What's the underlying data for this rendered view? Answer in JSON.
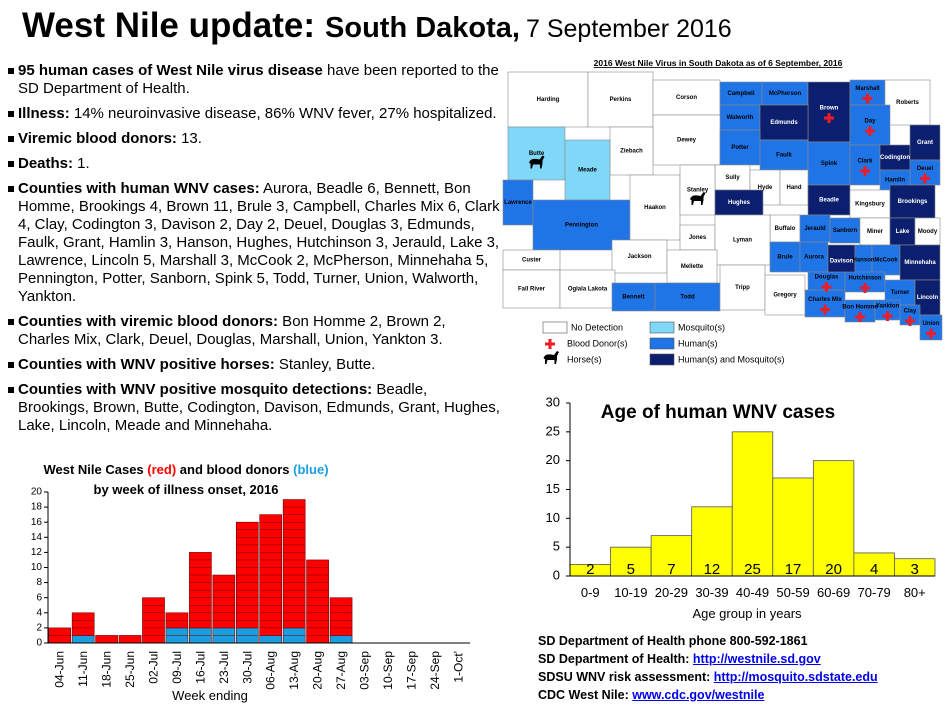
{
  "header": {
    "title_main": "West Nile update:",
    "title_state": "South Dakota,",
    "date": "7 September 2016"
  },
  "bullets": [
    {
      "lead": "95 human cases of West Nile virus disease",
      "text": " have been reported to the SD Department of Health."
    },
    {
      "lead": "Illness:",
      "text": "  14% neuroinvasive disease, 86% WNV fever, 27% hospitalized."
    },
    {
      "lead": "Viremic blood donors:",
      "text": " 13."
    },
    {
      "lead": "Deaths:",
      "text": "  1."
    },
    {
      "lead": "Counties with human WNV cases:",
      "text": "  Aurora, Beadle 6, Bennett, Bon Homme, Brookings 4, Brown 11, Brule 3, Campbell, Charles Mix 6, Clark 4, Clay, Codington 3, Davison 2, Day 2, Deuel, Douglas 3, Edmunds, Faulk, Grant, Hamlin 3, Hanson, Hughes, Hutchinson 3, Jerauld, Lake 3, Lawrence, Lincoln 5, Marshall 3, McCook 2, McPherson, Minnehaha 5, Pennington, Potter, Sanborn, Spink 5, Todd, Turner, Union, Walworth, Yankton."
    },
    {
      "lead": "Counties with viremic blood donors:",
      "text": "  Bon Homme 2, Brown 2, Charles Mix, Clark, Deuel, Douglas, Marshall, Union, Yankton 3."
    },
    {
      "lead": "Counties with WNV positive horses:",
      "text": "  Stanley, Butte."
    },
    {
      "lead": "Counties with WNV positive mosquito detections:",
      "text": "  Beadle, Brookings, Brown, Butte, Codington, Davison, Edmunds, Grant, Hughes, Lake, Lincoln, Meade and Minnehaha."
    }
  ],
  "map": {
    "title": "2016 West Nile Virus in South Dakota as of 6 September, 2016",
    "colors": {
      "none": "#ffffff",
      "mosquito": "#80d8f8",
      "human": "#1f74e6",
      "human-mosquito": "#0b1f6e"
    },
    "counties": [
      {
        "name": "Harding",
        "status": "none"
      },
      {
        "name": "Perkins",
        "status": "none"
      },
      {
        "name": "Corson",
        "status": "none"
      },
      {
        "name": "Campbell",
        "status": "human"
      },
      {
        "name": "McPherson",
        "status": "human"
      },
      {
        "name": "Brown",
        "status": "human-mosquito",
        "donor": true
      },
      {
        "name": "Marshall",
        "status": "human",
        "donor": true
      },
      {
        "name": "Roberts",
        "status": "none"
      },
      {
        "name": "Walworth",
        "status": "human"
      },
      {
        "name": "Edmunds",
        "status": "human-mosquito"
      },
      {
        "name": "Day",
        "status": "human",
        "donor": true
      },
      {
        "name": "Dewey",
        "status": "none"
      },
      {
        "name": "Ziebach",
        "status": "none"
      },
      {
        "name": "Butte",
        "status": "mosquito",
        "horse": true
      },
      {
        "name": "Meade",
        "status": "mosquito"
      },
      {
        "name": "Potter",
        "status": "human"
      },
      {
        "name": "Faulk",
        "status": "human"
      },
      {
        "name": "Spink",
        "status": "human"
      },
      {
        "name": "Clark",
        "status": "human",
        "donor": true
      },
      {
        "name": "Codington",
        "status": "human-mosquito"
      },
      {
        "name": "Grant",
        "status": "human-mosquito"
      },
      {
        "name": "Deuel",
        "status": "human",
        "donor": true
      },
      {
        "name": "Hamlin",
        "status": "human"
      },
      {
        "name": "Sully",
        "status": "none"
      },
      {
        "name": "Hyde",
        "status": "none"
      },
      {
        "name": "Hand",
        "status": "none"
      },
      {
        "name": "Beadle",
        "status": "human-mosquito"
      },
      {
        "name": "Kingsbury",
        "status": "none"
      },
      {
        "name": "Brookings",
        "status": "human-mosquito"
      },
      {
        "name": "Lawrence",
        "status": "human"
      },
      {
        "name": "Pennington",
        "status": "human"
      },
      {
        "name": "Haakon",
        "status": "none"
      },
      {
        "name": "Stanley",
        "status": "none",
        "horse": true
      },
      {
        "name": "Hughes",
        "status": "human-mosquito"
      },
      {
        "name": "Buffalo",
        "status": "none"
      },
      {
        "name": "Jerauld",
        "status": "human"
      },
      {
        "name": "Sanborn",
        "status": "human"
      },
      {
        "name": "Miner",
        "status": "none"
      },
      {
        "name": "Lake",
        "status": "human-mosquito"
      },
      {
        "name": "Moody",
        "status": "none"
      },
      {
        "name": "Jones",
        "status": "none"
      },
      {
        "name": "Lyman",
        "status": "none"
      },
      {
        "name": "Custer",
        "status": "none"
      },
      {
        "name": "Jackson",
        "status": "none"
      },
      {
        "name": "Mellette",
        "status": "none"
      },
      {
        "name": "Brule",
        "status": "human"
      },
      {
        "name": "Aurora",
        "status": "human"
      },
      {
        "name": "Davison",
        "status": "human-mosquito"
      },
      {
        "name": "Hanson",
        "status": "human"
      },
      {
        "name": "McCook",
        "status": "human"
      },
      {
        "name": "Minnehaha",
        "status": "human-mosquito"
      },
      {
        "name": "Fall River",
        "status": "none"
      },
      {
        "name": "Oglala Lakota",
        "status": "none"
      },
      {
        "name": "Bennett",
        "status": "human"
      },
      {
        "name": "Todd",
        "status": "human"
      },
      {
        "name": "Tripp",
        "status": "none"
      },
      {
        "name": "Gregory",
        "status": "none"
      },
      {
        "name": "Charles Mix",
        "status": "human",
        "donor": true
      },
      {
        "name": "Douglas",
        "status": "human",
        "donor": true
      },
      {
        "name": "Hutchinson",
        "status": "human",
        "donor": true
      },
      {
        "name": "Turner",
        "status": "human"
      },
      {
        "name": "Lincoln",
        "status": "human-mosquito"
      },
      {
        "name": "Bon Homme",
        "status": "human",
        "donor": true
      },
      {
        "name": "Yankton",
        "status": "human",
        "donor": true
      },
      {
        "name": "Clay",
        "status": "human",
        "donor": true
      },
      {
        "name": "Union",
        "status": "human",
        "donor": true
      }
    ],
    "legend": [
      {
        "label": "No Detection",
        "status": "none"
      },
      {
        "label": "Mosquito(s)",
        "status": "mosquito"
      },
      {
        "label": "Blood Donor(s)",
        "marker": "donor"
      },
      {
        "label": "Human(s)",
        "status": "human"
      },
      {
        "label": "Horse(s)",
        "marker": "horse"
      },
      {
        "label": "Human(s) and Mosquito(s)",
        "status": "human-mosquito"
      }
    ]
  },
  "chart_data": [
    {
      "type": "bar",
      "stacked": true,
      "title": [
        {
          "text": "West Nile Cases "
        },
        {
          "text": "(red)",
          "color": "#ff0000"
        },
        {
          "text": " and blood donors "
        },
        {
          "text": "(blue)",
          "color": "#1a9ee0"
        }
      ],
      "subtitle": "by week of illness onset, 2016",
      "x_label": "Week ending",
      "categories": [
        "04-Jun",
        "11-Jun",
        "18-Jun",
        "25-Jun",
        "02-Jul",
        "09-Jul",
        "16-Jul",
        "23-Jul",
        "30-Jul",
        "06-Aug",
        "13-Aug",
        "20-Aug",
        "27-Aug",
        "03-Sep",
        "10-Sep",
        "17-Sep",
        "24-Sep",
        "1-Oct'"
      ],
      "series": [
        {
          "color": "#1a9ee0",
          "values": [
            0,
            1,
            0,
            0,
            0,
            2,
            2,
            2,
            2,
            1,
            2,
            0,
            1,
            0,
            0,
            0,
            0,
            0
          ]
        },
        {
          "color": "#ff0000",
          "values": [
            2,
            3,
            1,
            1,
            6,
            2,
            10,
            7,
            14,
            16,
            17,
            11,
            5,
            0,
            0,
            0,
            0,
            0
          ]
        }
      ],
      "ylim": [
        0,
        20
      ],
      "yticks": [
        0,
        2,
        4,
        6,
        8,
        10,
        12,
        14,
        16,
        18,
        20
      ]
    },
    {
      "type": "bar",
      "title": "Age of human WNV cases",
      "x_label": "Age group in years",
      "categories": [
        "0-9",
        "10-19",
        "20-29",
        "30-39",
        "40-49",
        "50-59",
        "60-69",
        "70-79",
        "80+"
      ],
      "values": [
        2,
        5,
        7,
        12,
        25,
        17,
        20,
        4,
        3
      ],
      "color": "#ffff00",
      "ylim": [
        0,
        30
      ],
      "yticks": [
        0,
        5,
        10,
        15,
        20,
        25,
        30
      ]
    }
  ],
  "contacts": [
    {
      "lead": "SD Department of Health phone 800-592-1861"
    },
    {
      "lead": "SD Department of Health: ",
      "link": "http://westnile.sd.gov"
    },
    {
      "lead": "SDSU WNV risk assessment:  ",
      "link": "http://mosquito.sdstate.edu"
    },
    {
      "lead": "CDC West Nile:  ",
      "link": "www.cdc.gov/westnile"
    }
  ]
}
